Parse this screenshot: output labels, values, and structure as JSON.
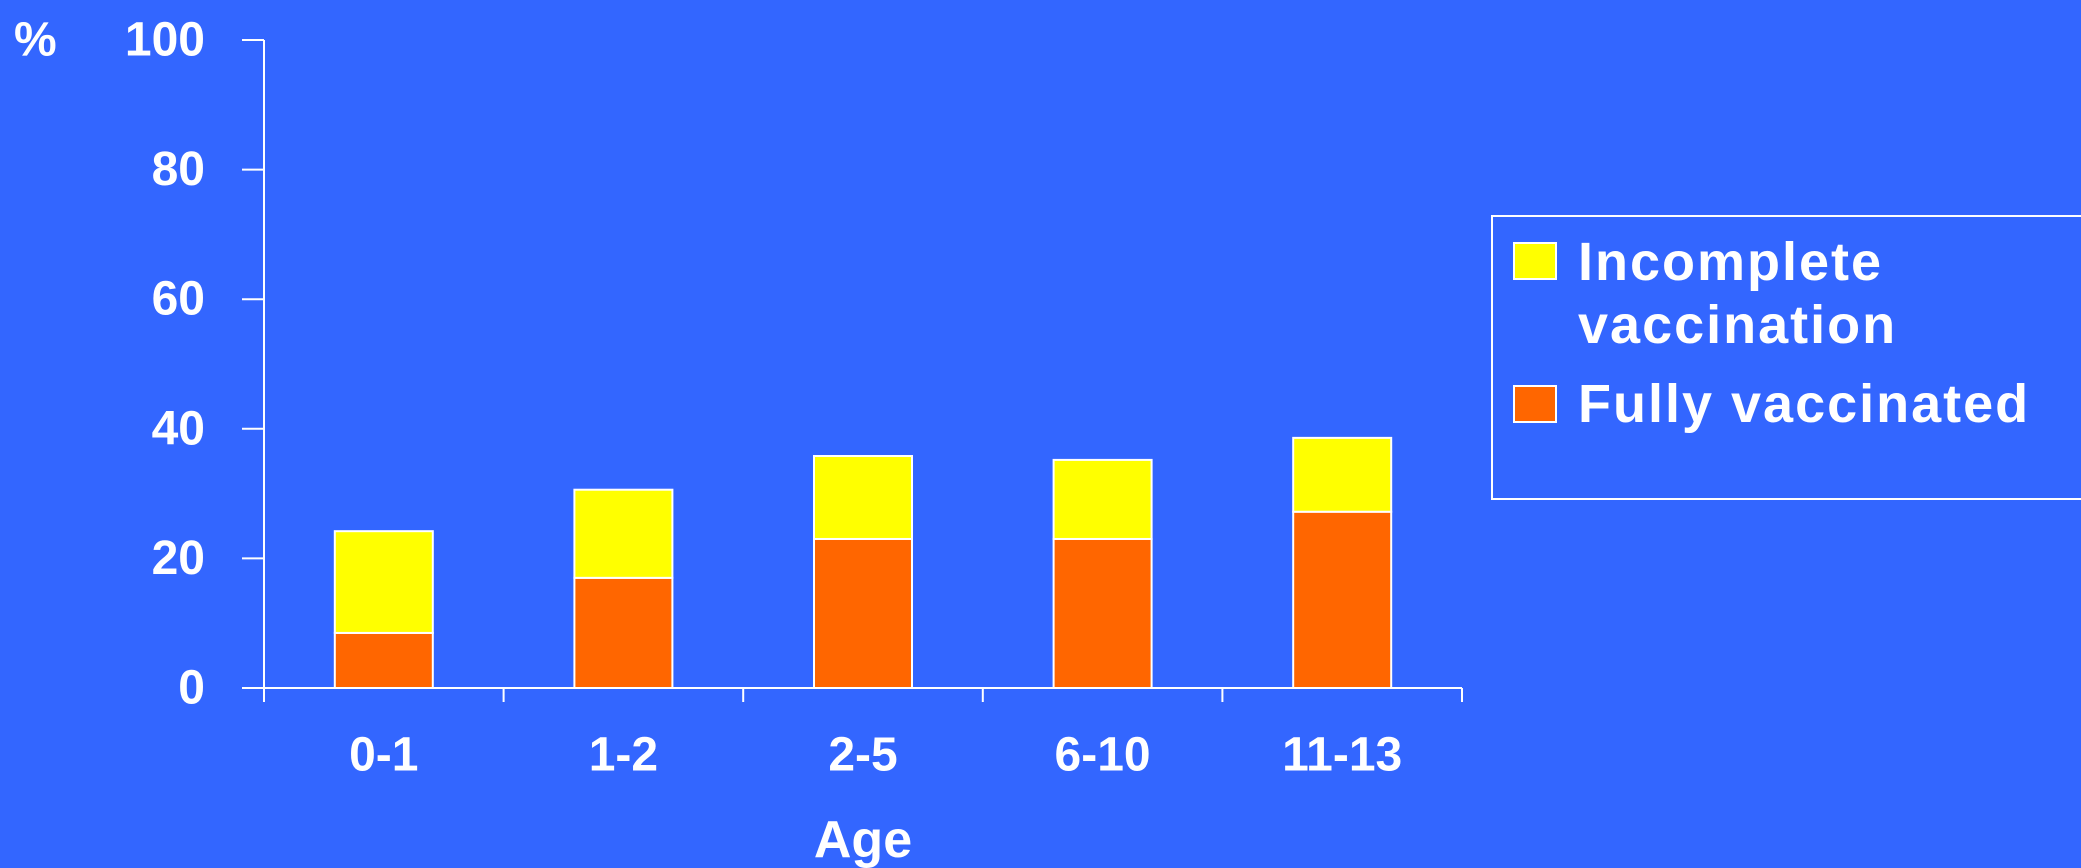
{
  "chart_data": {
    "type": "bar",
    "stacked": true,
    "categories": [
      "0-1",
      "1-2",
      "2-5",
      "6-10",
      "11-13"
    ],
    "series": [
      {
        "name": "Fully vaccinated",
        "color": "#FF6600",
        "values": [
          8.5,
          17,
          23,
          23,
          27.2
        ]
      },
      {
        "name": "Incomplete vaccination",
        "color": "#FFFF00",
        "values": [
          15.7,
          13.6,
          12.8,
          12.2,
          11.4
        ]
      }
    ],
    "xlabel": "Age",
    "ylabel": "%",
    "ylim": [
      0,
      100
    ],
    "yticks": [
      "0",
      "20",
      "40",
      "60",
      "80",
      "100"
    ],
    "legend": {
      "placement": "right",
      "entries": [
        {
          "label_lines": [
            "Incomplete",
            "vaccination"
          ],
          "color": "#FFFF00"
        },
        {
          "label_lines": [
            "Fully vaccinated"
          ],
          "color": "#FF6600"
        }
      ]
    },
    "background": "#3366FF",
    "axis_color": "#FFFFFF",
    "grid": false
  }
}
